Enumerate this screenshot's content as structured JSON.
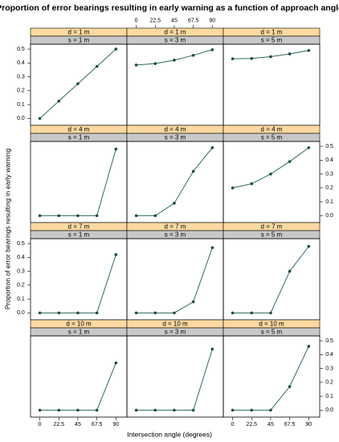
{
  "figure": {
    "title": "Proportion of error bearings resulting in early warning as a function of approach angle",
    "xlabel": "Intersection angle (degrees)",
    "ylabel": "Proportion of error bearings resulting in early warning",
    "xlim": [
      -11,
      103
    ],
    "ylim": [
      -0.05,
      0.535
    ],
    "xticks": [
      0,
      22.5,
      45,
      67.5,
      90
    ],
    "yticks": [
      {
        "value": 0,
        "label": "0.0"
      },
      0.1,
      0.2,
      0.3,
      0.4,
      0.5
    ],
    "strip_colors": [
      "#fdd9a0",
      "#c8c8c8"
    ],
    "color": "#2e6b5e",
    "point_color": "#1a4d3e"
  },
  "chart_data": [
    {
      "type": "line",
      "strip_top": "d = 1 m",
      "strip_bottom": "s = 1 m",
      "x": [
        0,
        22.5,
        45,
        67.5,
        90
      ],
      "values": [
        0,
        0.125,
        0.25,
        0.375,
        0.5
      ]
    },
    {
      "type": "line",
      "strip_top": "d = 1 m",
      "strip_bottom": "s = 3 m",
      "x": [
        0,
        22.5,
        45,
        67.5,
        90
      ],
      "values": [
        0.385,
        0.395,
        0.42,
        0.455,
        0.495
      ]
    },
    {
      "type": "line",
      "strip_top": "d = 1 m",
      "strip_bottom": "s = 5 m",
      "x": [
        0,
        22.5,
        45,
        67.5,
        90
      ],
      "values": [
        0.43,
        0.432,
        0.445,
        0.465,
        0.49
      ]
    },
    {
      "type": "line",
      "strip_top": "d = 4 m",
      "strip_bottom": "s = 1 m",
      "x": [
        0,
        22.5,
        45,
        67.5,
        90
      ],
      "values": [
        0,
        0,
        0,
        0,
        0.48
      ]
    },
    {
      "type": "line",
      "strip_top": "d = 4 m",
      "strip_bottom": "s = 3 m",
      "x": [
        0,
        22.5,
        45,
        67.5,
        90
      ],
      "values": [
        0,
        0,
        0.09,
        0.32,
        0.49
      ]
    },
    {
      "type": "line",
      "strip_top": "d = 4 m",
      "strip_bottom": "s = 5 m",
      "x": [
        0,
        22.5,
        45,
        67.5,
        90
      ],
      "values": [
        0.2,
        0.23,
        0.3,
        0.39,
        0.49
      ]
    },
    {
      "type": "line",
      "strip_top": "d = 7 m",
      "strip_bottom": "s = 1 m",
      "x": [
        0,
        22.5,
        45,
        67.5,
        90
      ],
      "values": [
        0,
        0,
        0,
        0,
        0.42
      ]
    },
    {
      "type": "line",
      "strip_top": "d = 7 m",
      "strip_bottom": "s = 3 m",
      "x": [
        0,
        22.5,
        45,
        67.5,
        90
      ],
      "values": [
        0,
        0,
        0,
        0.08,
        0.47
      ]
    },
    {
      "type": "line",
      "strip_top": "d = 7 m",
      "strip_bottom": "s = 5 m",
      "x": [
        0,
        22.5,
        45,
        67.5,
        90
      ],
      "values": [
        0,
        0,
        0,
        0.3,
        0.48
      ]
    },
    {
      "type": "line",
      "strip_top": "d = 10 m",
      "strip_bottom": "s = 1 m",
      "x": [
        0,
        22.5,
        45,
        67.5,
        90
      ],
      "values": [
        0,
        0,
        0,
        0,
        0.34
      ]
    },
    {
      "type": "line",
      "strip_top": "d = 10 m",
      "strip_bottom": "s = 3 m",
      "x": [
        0,
        22.5,
        45,
        67.5,
        90
      ],
      "values": [
        0,
        0,
        0,
        0,
        0.44
      ]
    },
    {
      "type": "line",
      "strip_top": "d = 10 m",
      "strip_bottom": "s = 5 m",
      "x": [
        0,
        22.5,
        45,
        67.5,
        90
      ],
      "values": [
        0,
        0,
        0,
        0.17,
        0.46
      ]
    }
  ]
}
